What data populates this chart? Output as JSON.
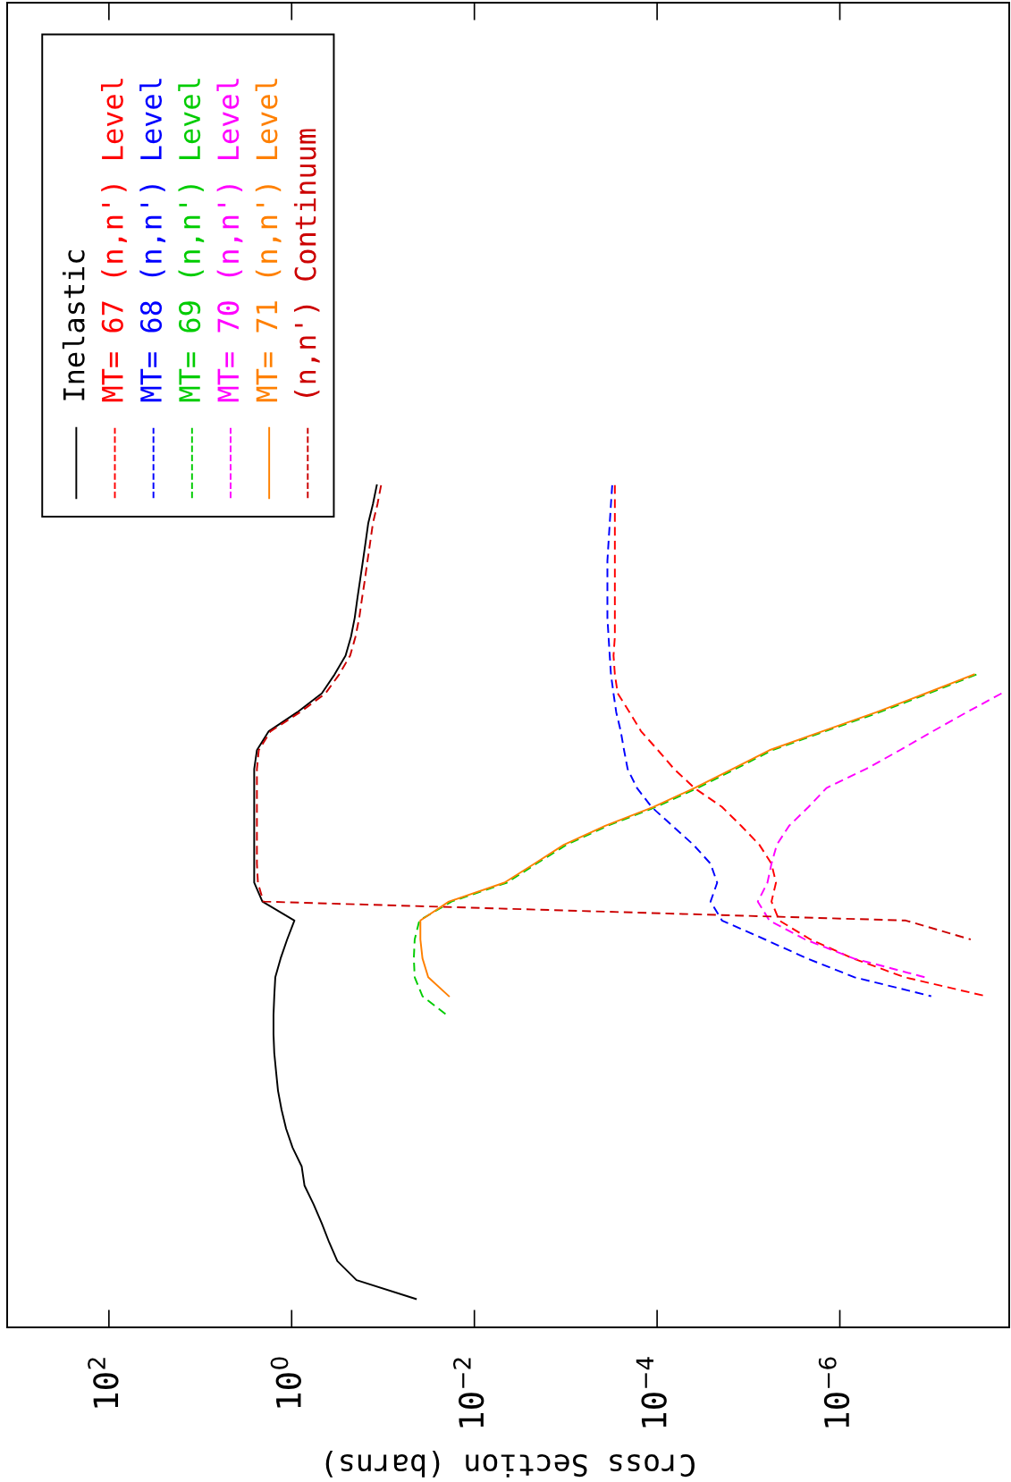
{
  "chart_data": {
    "type": "line",
    "orientation": "horizontal",
    "xlabel": "Cross Section (barns)",
    "log": "x",
    "grid": false,
    "legend": "top left",
    "tick_labels": "x",
    "xlim": [
      1300,
      1.4e-08
    ],
    "xticks": [
      {
        "value": 100,
        "label": "10$^{2}$"
      },
      {
        "value": 1,
        "label": "10$^{0}$"
      },
      {
        "value": 0.01,
        "label": "10$^{−2}$"
      },
      {
        "value": 0.0001,
        "label": "10$^{−4}$"
      },
      {
        "value": 1e-06,
        "label": "10$^{−6}$"
      }
    ],
    "categories": [
      null,
      null,
      null,
      null,
      null,
      null,
      null,
      null,
      null,
      null,
      null,
      null,
      null,
      null,
      null,
      null,
      null,
      null,
      null,
      null,
      null,
      null,
      null,
      null,
      null,
      null,
      null,
      null,
      null,
      null,
      null,
      null,
      null,
      null,
      null,
      null,
      null,
      null,
      null,
      null,
      null,
      null,
      null,
      null,
      null,
      null,
      null,
      null,
      null,
      null,
      null,
      null,
      null,
      null,
      null,
      null,
      null,
      null,
      null,
      null,
      null,
      null,
      null,
      null,
      null,
      null,
      null,
      null,
      null,
      null
    ],
    "series": [
      {
        "name": "Inelastic",
        "color": "#000000",
        "line_style": "solid",
        "values": [
          null,
          null,
          null,
          null,
          null,
          null,
          null,
          null,
          null,
          null,
          null,
          null,
          null,
          null,
          null,
          null,
          null,
          null,
          null,
          null,
          null,
          null,
          null,
          null,
          null,
          0.117,
          0.129,
          0.145,
          0.155,
          0.166,
          0.178,
          0.191,
          0.204,
          0.224,
          0.257,
          0.339,
          0.468,
          0.871,
          1.78,
          2.4,
          2.57,
          2.57,
          2.57,
          2.57,
          2.57,
          2.57,
          2.57,
          2.09,
          0.933,
          1.12,
          1.32,
          1.51,
          1.55,
          1.58,
          1.58,
          1.55,
          1.48,
          1.41,
          1.29,
          1.15,
          0.977,
          0.776,
          0.724,
          0.575,
          0.468,
          0.389,
          0.316,
          0.195,
          0.0437,
          null
        ]
      },
      {
        "name": "MT= 67 (n,n') Level",
        "color": "#ff0000",
        "line_style": "dashed",
        "values": [
          null,
          null,
          null,
          null,
          null,
          null,
          null,
          null,
          null,
          null,
          null,
          null,
          null,
          null,
          null,
          null,
          null,
          null,
          null,
          null,
          null,
          null,
          null,
          null,
          null,
          0.00029,
          0.00029,
          0.00029,
          0.00029,
          0.00029,
          0.00029,
          0.00029,
          0.00029,
          0.00029,
          0.0003,
          0.00029,
          0.00027,
          0.0002,
          0.00015,
          9.8e-05,
          6.5e-05,
          3.9e-05,
          1.95e-05,
          1.2e-05,
          7.6e-06,
          5.6e-06,
          5e-06,
          5.6e-06,
          4.6e-06,
          2.1e-06,
          7.2e-07,
          1.95e-07,
          2.5e-08,
          null,
          null,
          null,
          null,
          null,
          null,
          null,
          null,
          null,
          null,
          null,
          null,
          null,
          null,
          null,
          null,
          null
        ]
      },
      {
        "name": "MT= 68 (n,n') Level",
        "color": "#0000ff",
        "line_style": "dashed",
        "values": [
          null,
          null,
          null,
          null,
          null,
          null,
          null,
          null,
          null,
          null,
          null,
          null,
          null,
          null,
          null,
          null,
          null,
          null,
          null,
          null,
          null,
          null,
          null,
          null,
          null,
          0.00031,
          0.00032,
          0.00033,
          0.00034,
          0.00035,
          0.00035,
          0.00035,
          0.00035,
          0.00034,
          0.00033,
          0.00032,
          0.0003,
          0.00028,
          0.00025,
          0.00023,
          0.00021,
          0.000166,
          0.000115,
          6.8e-05,
          4e-05,
          2.6e-05,
          2.2e-05,
          2.6e-05,
          1.95e-05,
          6.6e-06,
          2.3e-06,
          6.9e-07,
          1e-07,
          null,
          null,
          null,
          null,
          null,
          null,
          null,
          null,
          null,
          null,
          null,
          null,
          null,
          null,
          null,
          null,
          null
        ]
      },
      {
        "name": "MT= 69 (n,n') Level",
        "color": "#00cc00",
        "line_style": "dashed",
        "values": [
          null,
          null,
          null,
          null,
          null,
          null,
          null,
          null,
          null,
          null,
          null,
          null,
          null,
          null,
          null,
          null,
          null,
          null,
          null,
          null,
          null,
          null,
          null,
          null,
          null,
          null,
          null,
          null,
          null,
          null,
          null,
          null,
          null,
          null,
          null,
          3.2e-08,
          1.07e-07,
          3.7e-07,
          1.45e-06,
          5.5e-06,
          1.4e-05,
          3.6e-05,
          0.000103,
          0.00035,
          0.00098,
          0.0021,
          0.0044,
          0.0178,
          0.04,
          0.045,
          0.046,
          0.045,
          0.037,
          0.02,
          null,
          null,
          null,
          null,
          null,
          null,
          null,
          null,
          null,
          null,
          null,
          null,
          null,
          null,
          null,
          null
        ]
      },
      {
        "name": "MT= 70 (n,n') Level",
        "color": "#ff00ff",
        "line_style": "dashed",
        "values": [
          null,
          null,
          null,
          null,
          null,
          null,
          null,
          null,
          null,
          null,
          null,
          null,
          null,
          null,
          null,
          null,
          null,
          null,
          null,
          null,
          null,
          null,
          null,
          null,
          null,
          null,
          null,
          null,
          null,
          null,
          null,
          null,
          null,
          null,
          null,
          null,
          1.7e-08,
          4.1e-08,
          9.6e-08,
          2.2e-07,
          5.2e-07,
          1.4e-06,
          2.2e-06,
          3.6e-06,
          4.9e-06,
          5.6e-06,
          6.2e-06,
          7.9e-06,
          5.9e-06,
          2.4e-06,
          7.1e-07,
          1.17e-07,
          null,
          null,
          null,
          null,
          null,
          null,
          null,
          null,
          null,
          null,
          null,
          null,
          null,
          null,
          null,
          null,
          null,
          null
        ]
      },
      {
        "name": "MT= 71 (n,n') Level",
        "color": "#ff8000",
        "line_style": "solid",
        "values": [
          null,
          null,
          null,
          null,
          null,
          null,
          null,
          null,
          null,
          null,
          null,
          null,
          null,
          null,
          null,
          null,
          null,
          null,
          null,
          null,
          null,
          null,
          null,
          null,
          null,
          null,
          null,
          null,
          null,
          null,
          null,
          null,
          null,
          null,
          null,
          3.4e-08,
          1.15e-07,
          4e-07,
          1.55e-06,
          5.9e-06,
          1.5e-05,
          3.9e-05,
          0.00011,
          0.00037,
          0.00105,
          0.0022,
          0.0047,
          0.019,
          0.039,
          0.039,
          0.037,
          0.032,
          0.019,
          null,
          null,
          null,
          null,
          null,
          null,
          null,
          null,
          null,
          null,
          null,
          null,
          null,
          null,
          null,
          null,
          null
        ]
      },
      {
        "name": "(n,n') Continuum",
        "color": "#cc0000",
        "line_style": "dashed",
        "values": [
          null,
          null,
          null,
          null,
          null,
          null,
          null,
          null,
          null,
          null,
          null,
          null,
          null,
          null,
          null,
          null,
          null,
          null,
          null,
          null,
          null,
          null,
          null,
          null,
          null,
          0.105,
          0.115,
          0.129,
          0.138,
          0.148,
          0.158,
          0.17,
          0.182,
          0.2,
          0.229,
          0.302,
          0.427,
          0.813,
          1.7,
          2.29,
          2.4,
          2.4,
          2.4,
          2.4,
          2.4,
          2.4,
          2.34,
          2.04,
          1.9e-07,
          3.7e-08,
          null,
          null,
          null,
          null,
          null,
          null,
          null,
          null,
          null,
          null,
          null,
          null,
          null,
          null,
          null,
          null,
          null,
          null,
          null,
          null
        ]
      }
    ]
  }
}
